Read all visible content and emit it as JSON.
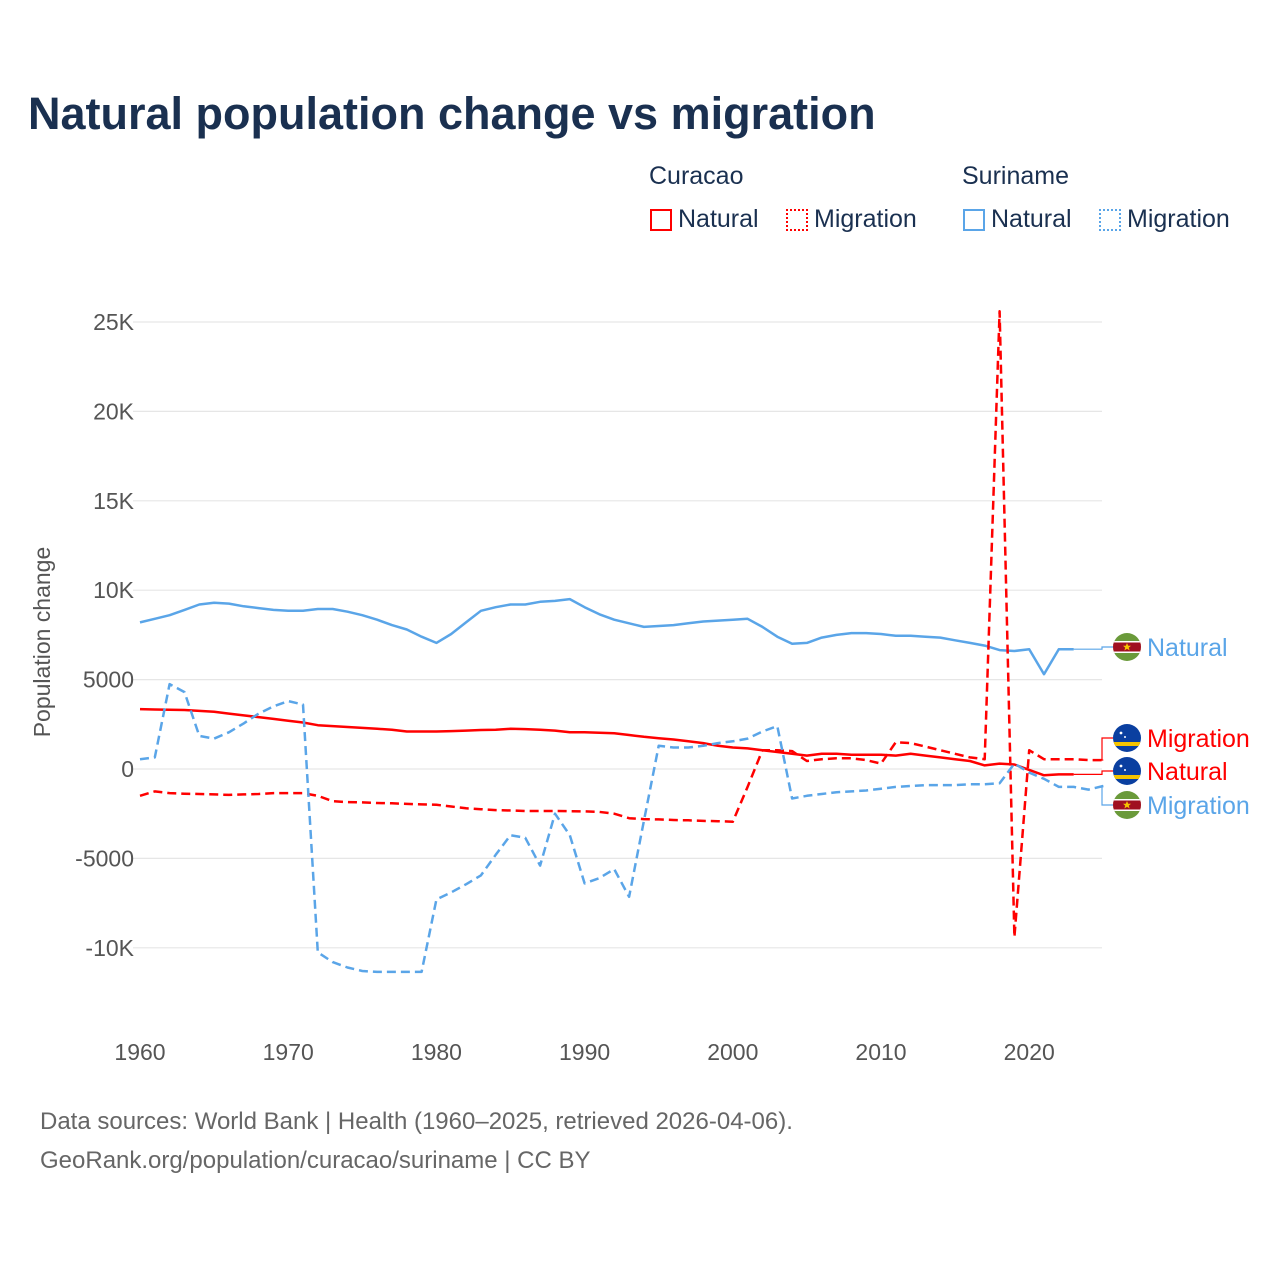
{
  "title": "Natural population change vs migration",
  "legend": {
    "groups": [
      {
        "name": "Curacao",
        "color": "#ff0000",
        "items": [
          "Natural",
          "Migration"
        ]
      },
      {
        "name": "Suriname",
        "color": "#5aa5e8",
        "items": [
          "Natural",
          "Migration"
        ]
      }
    ]
  },
  "footer": {
    "line1": "Data sources: World Bank | Health (1960–2025, retrieved 2026-04-06).",
    "line2": "GeoRank.org/population/curacao/suriname | CC BY"
  },
  "chart_data": {
    "type": "line",
    "title": "Natural population change vs migration",
    "xlabel": "",
    "ylabel": "Population change",
    "xlim": [
      1960,
      2025
    ],
    "ylim": [
      -13000,
      27000
    ],
    "grid": true,
    "legend_position": "top-right",
    "x_ticks": [
      1960,
      1970,
      1980,
      1990,
      2000,
      2010,
      2020
    ],
    "x_tick_labels": [
      "1960",
      "1970",
      "1980",
      "1990",
      "2000",
      "2010",
      "2020"
    ],
    "y_ticks": [
      25000,
      20000,
      15000,
      10000,
      5000,
      0,
      -5000,
      -10000
    ],
    "y_tick_labels": [
      "25K",
      "20K",
      "15K",
      "10K",
      "5000",
      "0",
      "-5000",
      "-10K"
    ],
    "series": [
      {
        "name": "Suriname Natural",
        "label": "Natural",
        "country": "Suriname",
        "color": "#5aa5e8",
        "dash": false,
        "start": 1960,
        "values": [
          8200,
          8400,
          8600,
          8900,
          9200,
          9300,
          9250,
          9100,
          9000,
          8900,
          8850,
          8850,
          8950,
          8950,
          8800,
          8600,
          8350,
          8050,
          7800,
          7400,
          7050,
          7550,
          8200,
          8850,
          9050,
          9200,
          9200,
          9350,
          9400,
          9500,
          9050,
          8650,
          8350,
          8150,
          7950,
          8000,
          8050,
          8150,
          8250,
          8300,
          8350,
          8400,
          7950,
          7400,
          7000,
          7050,
          7350,
          7500,
          7600,
          7600,
          7550,
          7450,
          7450,
          7400,
          7350,
          7200,
          7050,
          6900,
          6650,
          6600,
          6700,
          5300,
          6700,
          6700
        ]
      },
      {
        "name": "Curacao Natural",
        "label": "Natural",
        "country": "Curacao",
        "color": "#ff0000",
        "dash": false,
        "start": 1960,
        "values": [
          3350,
          3330,
          3310,
          3300,
          3250,
          3200,
          3100,
          3000,
          2900,
          2800,
          2700,
          2600,
          2450,
          2400,
          2350,
          2300,
          2250,
          2200,
          2100,
          2100,
          2100,
          2120,
          2150,
          2180,
          2200,
          2250,
          2230,
          2200,
          2150,
          2050,
          2050,
          2030,
          2000,
          1900,
          1800,
          1720,
          1650,
          1550,
          1450,
          1300,
          1200,
          1150,
          1050,
          950,
          850,
          750,
          850,
          850,
          800,
          800,
          800,
          750,
          850,
          750,
          650,
          550,
          450,
          200,
          300,
          250,
          -50,
          -350,
          -300,
          -300
        ]
      },
      {
        "name": "Curacao Migration",
        "label": "Migration",
        "country": "Curacao",
        "color": "#ff0000",
        "dash": true,
        "start": 1960,
        "values": [
          -1500,
          -1250,
          -1350,
          -1380,
          -1400,
          -1420,
          -1450,
          -1420,
          -1400,
          -1350,
          -1350,
          -1350,
          -1500,
          -1800,
          -1850,
          -1870,
          -1900,
          -1920,
          -1950,
          -1980,
          -2000,
          -2100,
          -2200,
          -2250,
          -2300,
          -2320,
          -2350,
          -2350,
          -2350,
          -2360,
          -2370,
          -2400,
          -2500,
          -2750,
          -2800,
          -2820,
          -2850,
          -2870,
          -2900,
          -2920,
          -2950,
          -1000,
          1050,
          1050,
          1000,
          450,
          550,
          600,
          600,
          500,
          300,
          1500,
          1450,
          1250,
          1050,
          850,
          650,
          550,
          25600,
          -9400,
          1050,
          550,
          550,
          550,
          500,
          500
        ]
      },
      {
        "name": "Suriname Migration",
        "label": "Migration",
        "country": "Suriname",
        "color": "#5aa5e8",
        "dash": true,
        "start": 1960,
        "values": [
          550,
          650,
          4750,
          4300,
          1850,
          1700,
          2050,
          2550,
          3100,
          3500,
          3800,
          3600,
          -10250,
          -10800,
          -11100,
          -11300,
          -11350,
          -11350,
          -11350,
          -11350,
          -7300,
          -6900,
          -6450,
          -5950,
          -4800,
          -3700,
          -3850,
          -5400,
          -2500,
          -3700,
          -6400,
          -6100,
          -5600,
          -7150,
          -2900,
          1300,
          1200,
          1200,
          1300,
          1450,
          1550,
          1700,
          2100,
          2400,
          -1650,
          -1500,
          -1400,
          -1300,
          -1250,
          -1200,
          -1100,
          -1000,
          -950,
          -900,
          -900,
          -900,
          -850,
          -850,
          -800,
          300,
          -200,
          -550,
          -1000,
          -1000,
          -1150,
          -950
        ]
      }
    ],
    "end_labels": [
      {
        "text": "Natural",
        "country": "Suriname",
        "color": "#5aa5e8"
      },
      {
        "text": "Migration",
        "country": "Curacao",
        "color": "#ff0000"
      },
      {
        "text": "Natural",
        "country": "Curacao",
        "color": "#ff0000"
      },
      {
        "text": "Migration",
        "country": "Suriname",
        "color": "#5aa5e8"
      }
    ]
  }
}
